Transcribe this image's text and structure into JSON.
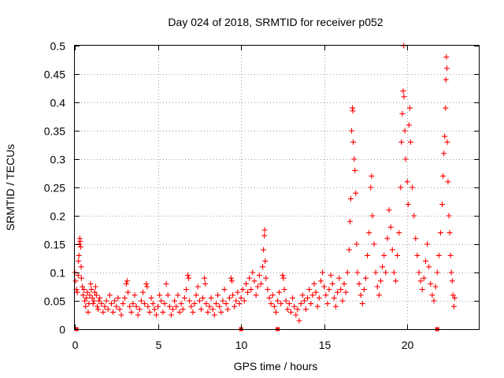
{
  "chart_data": {
    "type": "scatter",
    "title": "Day 024 of 2018, SRMTID for receiver p052",
    "xlabel": "GPS time / hours",
    "ylabel": "SRMTID / TECUs",
    "xlim": [
      0,
      24.3
    ],
    "ylim": [
      0,
      0.5
    ],
    "x_ticks": [
      0,
      5,
      10,
      15,
      20
    ],
    "x_tick_labels": [
      "0",
      "5",
      "10",
      "15",
      "20"
    ],
    "y_ticks": [
      0,
      0.05,
      0.1,
      0.15,
      0.2,
      0.25,
      0.3,
      0.35,
      0.4,
      0.45,
      0.5
    ],
    "y_tick_labels": [
      "0",
      "0.05",
      "0.1",
      "0.15",
      "0.2",
      "0.25",
      "0.3",
      "0.35",
      "0.4",
      "0.45",
      "0.5"
    ],
    "grid": true,
    "marker": "+",
    "color": "#ff0000",
    "gap_markers_x": [
      0.1,
      10.0,
      12.2,
      21.8
    ],
    "series": [
      {
        "name": "SRMTID",
        "points": [
          [
            0.0,
            0.1
          ],
          [
            0.05,
            0.085
          ],
          [
            0.1,
            0.07
          ],
          [
            0.15,
            0.065
          ],
          [
            0.2,
            0.095
          ],
          [
            0.22,
            0.12
          ],
          [
            0.25,
            0.13
          ],
          [
            0.28,
            0.15
          ],
          [
            0.3,
            0.16
          ],
          [
            0.32,
            0.155
          ],
          [
            0.35,
            0.145
          ],
          [
            0.38,
            0.11
          ],
          [
            0.4,
            0.09
          ],
          [
            0.45,
            0.075
          ],
          [
            0.5,
            0.06
          ],
          [
            0.55,
            0.07
          ],
          [
            0.6,
            0.05
          ],
          [
            0.65,
            0.04
          ],
          [
            0.7,
            0.055
          ],
          [
            0.75,
            0.065
          ],
          [
            0.8,
            0.03
          ],
          [
            0.85,
            0.045
          ],
          [
            0.9,
            0.06
          ],
          [
            0.95,
            0.08
          ],
          [
            1.0,
            0.07
          ],
          [
            1.05,
            0.055
          ],
          [
            1.1,
            0.045
          ],
          [
            1.15,
            0.05
          ],
          [
            1.2,
            0.065
          ],
          [
            1.25,
            0.075
          ],
          [
            1.3,
            0.06
          ],
          [
            1.35,
            0.04
          ],
          [
            1.4,
            0.035
          ],
          [
            1.45,
            0.05
          ],
          [
            1.5,
            0.055
          ],
          [
            1.6,
            0.045
          ],
          [
            1.7,
            0.03
          ],
          [
            1.8,
            0.04
          ],
          [
            1.9,
            0.05
          ],
          [
            2.0,
            0.035
          ],
          [
            2.1,
            0.06
          ],
          [
            2.2,
            0.045
          ],
          [
            2.3,
            0.03
          ],
          [
            2.4,
            0.05
          ],
          [
            2.5,
            0.04
          ],
          [
            2.6,
            0.055
          ],
          [
            2.7,
            0.035
          ],
          [
            2.8,
            0.025
          ],
          [
            2.9,
            0.045
          ],
          [
            3.0,
            0.055
          ],
          [
            3.1,
            0.08
          ],
          [
            3.15,
            0.085
          ],
          [
            3.2,
            0.065
          ],
          [
            3.3,
            0.04
          ],
          [
            3.4,
            0.03
          ],
          [
            3.5,
            0.045
          ],
          [
            3.6,
            0.06
          ],
          [
            3.7,
            0.04
          ],
          [
            3.8,
            0.025
          ],
          [
            3.9,
            0.035
          ],
          [
            4.0,
            0.05
          ],
          [
            4.1,
            0.065
          ],
          [
            4.2,
            0.045
          ],
          [
            4.3,
            0.08
          ],
          [
            4.35,
            0.075
          ],
          [
            4.4,
            0.04
          ],
          [
            4.5,
            0.03
          ],
          [
            4.6,
            0.055
          ],
          [
            4.7,
            0.045
          ],
          [
            4.8,
            0.035
          ],
          [
            4.9,
            0.025
          ],
          [
            5.0,
            0.04
          ],
          [
            5.1,
            0.06
          ],
          [
            5.2,
            0.05
          ],
          [
            5.3,
            0.03
          ],
          [
            5.4,
            0.045
          ],
          [
            5.5,
            0.08
          ],
          [
            5.6,
            0.06
          ],
          [
            5.7,
            0.04
          ],
          [
            5.8,
            0.025
          ],
          [
            5.9,
            0.035
          ],
          [
            6.0,
            0.05
          ],
          [
            6.1,
            0.04
          ],
          [
            6.2,
            0.06
          ],
          [
            6.3,
            0.03
          ],
          [
            6.4,
            0.045
          ],
          [
            6.5,
            0.035
          ],
          [
            6.6,
            0.055
          ],
          [
            6.7,
            0.07
          ],
          [
            6.8,
            0.095
          ],
          [
            6.85,
            0.09
          ],
          [
            6.9,
            0.05
          ],
          [
            7.0,
            0.04
          ],
          [
            7.1,
            0.03
          ],
          [
            7.2,
            0.045
          ],
          [
            7.3,
            0.06
          ],
          [
            7.4,
            0.075
          ],
          [
            7.5,
            0.05
          ],
          [
            7.6,
            0.035
          ],
          [
            7.7,
            0.055
          ],
          [
            7.8,
            0.09
          ],
          [
            7.85,
            0.08
          ],
          [
            7.9,
            0.045
          ],
          [
            8.0,
            0.03
          ],
          [
            8.1,
            0.04
          ],
          [
            8.2,
            0.055
          ],
          [
            8.3,
            0.035
          ],
          [
            8.4,
            0.025
          ],
          [
            8.5,
            0.045
          ],
          [
            8.6,
            0.06
          ],
          [
            8.7,
            0.04
          ],
          [
            8.8,
            0.03
          ],
          [
            8.9,
            0.05
          ],
          [
            9.0,
            0.07
          ],
          [
            9.1,
            0.045
          ],
          [
            9.2,
            0.035
          ],
          [
            9.3,
            0.055
          ],
          [
            9.4,
            0.09
          ],
          [
            9.45,
            0.085
          ],
          [
            9.5,
            0.06
          ],
          [
            9.6,
            0.04
          ],
          [
            9.7,
            0.05
          ],
          [
            9.8,
            0.065
          ],
          [
            9.9,
            0.045
          ],
          [
            10.0,
            0.055
          ],
          [
            10.1,
            0.07
          ],
          [
            10.2,
            0.05
          ],
          [
            10.3,
            0.08
          ],
          [
            10.4,
            0.065
          ],
          [
            10.5,
            0.09
          ],
          [
            10.6,
            0.07
          ],
          [
            10.7,
            0.1
          ],
          [
            10.8,
            0.085
          ],
          [
            10.9,
            0.06
          ],
          [
            11.0,
            0.075
          ],
          [
            11.1,
            0.095
          ],
          [
            11.2,
            0.08
          ],
          [
            11.3,
            0.11
          ],
          [
            11.35,
            0.14
          ],
          [
            11.4,
            0.165
          ],
          [
            11.42,
            0.175
          ],
          [
            11.45,
            0.12
          ],
          [
            11.5,
            0.09
          ],
          [
            11.6,
            0.07
          ],
          [
            11.7,
            0.055
          ],
          [
            11.8,
            0.045
          ],
          [
            11.9,
            0.06
          ],
          [
            12.0,
            0.04
          ],
          [
            12.1,
            0.03
          ],
          [
            12.2,
            0.05
          ],
          [
            12.3,
            0.065
          ],
          [
            12.4,
            0.045
          ],
          [
            12.5,
            0.095
          ],
          [
            12.55,
            0.09
          ],
          [
            12.6,
            0.07
          ],
          [
            12.7,
            0.05
          ],
          [
            12.8,
            0.035
          ],
          [
            12.9,
            0.045
          ],
          [
            13.0,
            0.03
          ],
          [
            13.1,
            0.055
          ],
          [
            13.2,
            0.04
          ],
          [
            13.3,
            0.025
          ],
          [
            13.4,
            0.035
          ],
          [
            13.5,
            0.015
          ],
          [
            13.6,
            0.045
          ],
          [
            13.7,
            0.06
          ],
          [
            13.8,
            0.05
          ],
          [
            13.9,
            0.035
          ],
          [
            14.0,
            0.055
          ],
          [
            14.1,
            0.07
          ],
          [
            14.2,
            0.045
          ],
          [
            14.3,
            0.06
          ],
          [
            14.4,
            0.08
          ],
          [
            14.5,
            0.065
          ],
          [
            14.6,
            0.04
          ],
          [
            14.7,
            0.055
          ],
          [
            14.8,
            0.085
          ],
          [
            14.9,
            0.1
          ],
          [
            15.0,
            0.075
          ],
          [
            15.1,
            0.06
          ],
          [
            15.2,
            0.045
          ],
          [
            15.3,
            0.07
          ],
          [
            15.4,
            0.095
          ],
          [
            15.5,
            0.08
          ],
          [
            15.6,
            0.055
          ],
          [
            15.7,
            0.04
          ],
          [
            15.8,
            0.065
          ],
          [
            15.9,
            0.09
          ],
          [
            16.0,
            0.07
          ],
          [
            16.1,
            0.05
          ],
          [
            16.2,
            0.08
          ],
          [
            16.3,
            0.065
          ],
          [
            16.4,
            0.1
          ],
          [
            16.5,
            0.14
          ],
          [
            16.55,
            0.19
          ],
          [
            16.6,
            0.23
          ],
          [
            16.65,
            0.35
          ],
          [
            16.7,
            0.39
          ],
          [
            16.72,
            0.385
          ],
          [
            16.75,
            0.33
          ],
          [
            16.8,
            0.3
          ],
          [
            16.85,
            0.28
          ],
          [
            16.9,
            0.24
          ],
          [
            16.95,
            0.15
          ],
          [
            17.0,
            0.1
          ],
          [
            17.1,
            0.08
          ],
          [
            17.2,
            0.06
          ],
          [
            17.3,
            0.045
          ],
          [
            17.4,
            0.07
          ],
          [
            17.5,
            0.09
          ],
          [
            17.6,
            0.13
          ],
          [
            17.7,
            0.17
          ],
          [
            17.8,
            0.25
          ],
          [
            17.85,
            0.27
          ],
          [
            17.9,
            0.2
          ],
          [
            18.0,
            0.15
          ],
          [
            18.1,
            0.1
          ],
          [
            18.2,
            0.075
          ],
          [
            18.3,
            0.06
          ],
          [
            18.4,
            0.085
          ],
          [
            18.5,
            0.11
          ],
          [
            18.6,
            0.13
          ],
          [
            18.7,
            0.1
          ],
          [
            18.8,
            0.16
          ],
          [
            18.9,
            0.21
          ],
          [
            19.0,
            0.18
          ],
          [
            19.1,
            0.14
          ],
          [
            19.2,
            0.1
          ],
          [
            19.3,
            0.085
          ],
          [
            19.4,
            0.13
          ],
          [
            19.5,
            0.17
          ],
          [
            19.6,
            0.25
          ],
          [
            19.65,
            0.33
          ],
          [
            19.7,
            0.38
          ],
          [
            19.75,
            0.42
          ],
          [
            19.78,
            0.5
          ],
          [
            19.8,
            0.41
          ],
          [
            19.85,
            0.35
          ],
          [
            19.9,
            0.3
          ],
          [
            20.0,
            0.26
          ],
          [
            20.05,
            0.22
          ],
          [
            20.1,
            0.36
          ],
          [
            20.15,
            0.39
          ],
          [
            20.2,
            0.33
          ],
          [
            20.3,
            0.25
          ],
          [
            20.4,
            0.2
          ],
          [
            20.5,
            0.16
          ],
          [
            20.6,
            0.13
          ],
          [
            20.7,
            0.1
          ],
          [
            20.8,
            0.085
          ],
          [
            20.9,
            0.07
          ],
          [
            21.0,
            0.09
          ],
          [
            21.1,
            0.12
          ],
          [
            21.2,
            0.15
          ],
          [
            21.3,
            0.11
          ],
          [
            21.4,
            0.08
          ],
          [
            21.5,
            0.06
          ],
          [
            21.6,
            0.05
          ],
          [
            21.7,
            0.075
          ],
          [
            21.8,
            0.1
          ],
          [
            21.9,
            0.13
          ],
          [
            22.0,
            0.17
          ],
          [
            22.1,
            0.22
          ],
          [
            22.15,
            0.27
          ],
          [
            22.2,
            0.31
          ],
          [
            22.25,
            0.34
          ],
          [
            22.3,
            0.39
          ],
          [
            22.32,
            0.44
          ],
          [
            22.35,
            0.48
          ],
          [
            22.38,
            0.46
          ],
          [
            22.4,
            0.33
          ],
          [
            22.45,
            0.26
          ],
          [
            22.5,
            0.2
          ],
          [
            22.55,
            0.17
          ],
          [
            22.6,
            0.13
          ],
          [
            22.65,
            0.1
          ],
          [
            22.7,
            0.085
          ],
          [
            22.75,
            0.06
          ],
          [
            22.8,
            0.04
          ],
          [
            22.85,
            0.055
          ]
        ]
      }
    ]
  }
}
